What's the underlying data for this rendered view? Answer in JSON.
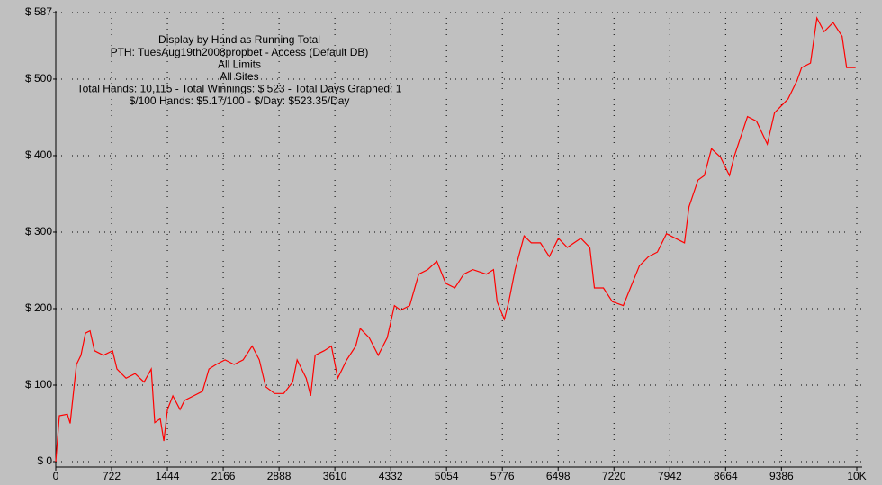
{
  "chart_data": {
    "type": "line",
    "annotations": [
      "Display by Hand as Running Total",
      "PTH: TuesAug19th2008propbet - Access (Default DB)",
      "All Limits",
      "All Sites",
      "Total Hands: 10,115 - Total Winnings: $ 523 - Total Days Graphed: 1",
      "$/100 Hands: $5.17/100 - $/Day: $523.35/Day"
    ],
    "color": "#ff0000",
    "grid": true,
    "xlim": [
      0,
      10360
    ],
    "xticks": [
      0,
      722,
      1444,
      2166,
      2888,
      3610,
      4332,
      5054,
      5776,
      6498,
      7220,
      7942,
      8664,
      9386,
      {
        "value": 10360,
        "label": "10K"
      }
    ],
    "ylim": [
      0,
      587
    ],
    "yticks": [
      {
        "value": 0,
        "label": "$ 0"
      },
      {
        "value": 100,
        "label": "$ 100"
      },
      {
        "value": 200,
        "label": "$ 200"
      },
      {
        "value": 300,
        "label": "$ 300"
      },
      {
        "value": 400,
        "label": "$ 400"
      },
      {
        "value": 500,
        "label": "$ 500"
      },
      {
        "value": 587,
        "label": "$ 587"
      }
    ],
    "x": [
      0,
      47,
      150,
      186,
      268,
      326,
      384,
      443,
      500,
      617,
      734,
      792,
      909,
      1025,
      1142,
      1235,
      1281,
      1351,
      1398,
      1444,
      1515,
      1608,
      1666,
      1783,
      1899,
      1981,
      2074,
      2190,
      2307,
      2423,
      2540,
      2633,
      2715,
      2831,
      2948,
      3064,
      3122,
      3239,
      3297,
      3355,
      3472,
      3565,
      3647,
      3763,
      3880,
      3938,
      4054,
      4171,
      4287,
      4380,
      4462,
      4578,
      4695,
      4811,
      4928,
      5044,
      5161,
      5277,
      5394,
      5569,
      5662,
      5709,
      5802,
      5860,
      5941,
      6058,
      6151,
      6268,
      6384,
      6501,
      6617,
      6792,
      6908,
      6967,
      7083,
      7200,
      7340,
      7433,
      7549,
      7666,
      7782,
      7899,
      8015,
      8132,
      8190,
      8307,
      8388,
      8481,
      8598,
      8714,
      8772,
      8947,
      9063,
      9203,
      9296,
      9471,
      9587,
      9646,
      9762,
      9844,
      9937,
      10054,
      10170,
      10229,
      10345
    ],
    "values": [
      0,
      60,
      62,
      50,
      127,
      139,
      168,
      171,
      145,
      139,
      145,
      121,
      109,
      115,
      104,
      121,
      51,
      56,
      27,
      68,
      86,
      68,
      80,
      86,
      92,
      121,
      127,
      133,
      127,
      133,
      151,
      133,
      98,
      89,
      89,
      104,
      133,
      109,
      86,
      139,
      145,
      151,
      109,
      133,
      151,
      174,
      162,
      139,
      162,
      204,
      198,
      204,
      245,
      251,
      262,
      233,
      227,
      245,
      251,
      245,
      251,
      209,
      186,
      209,
      251,
      295,
      286,
      286,
      268,
      292,
      280,
      292,
      280,
      227,
      227,
      209,
      204,
      227,
      256,
      268,
      274,
      298,
      292,
      286,
      333,
      368,
      374,
      409,
      398,
      374,
      398,
      451,
      445,
      415,
      456,
      474,
      498,
      515,
      521,
      580,
      562,
      574,
      556,
      515,
      515
    ]
  }
}
